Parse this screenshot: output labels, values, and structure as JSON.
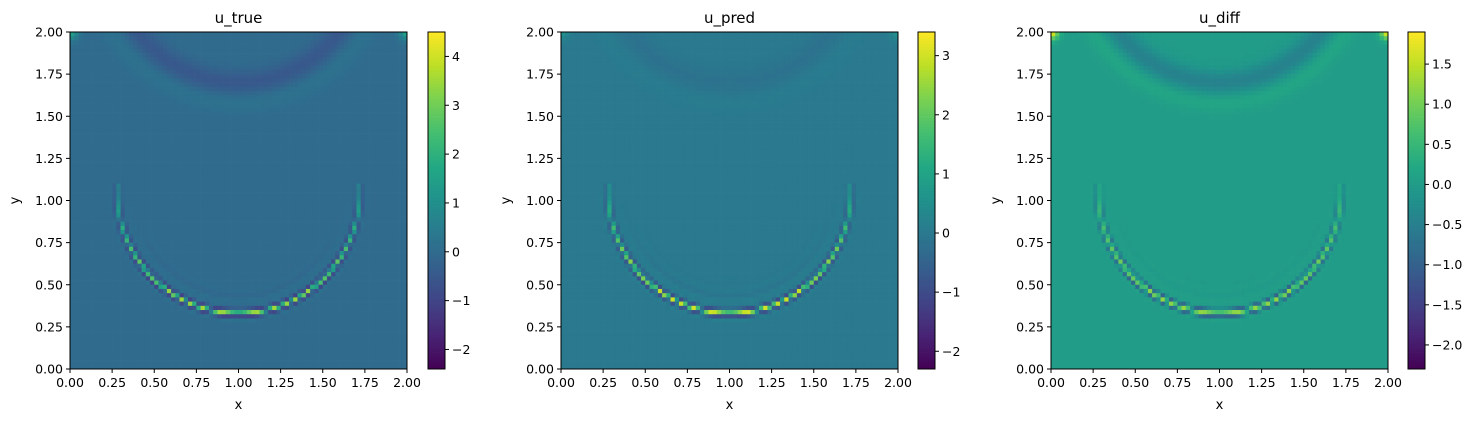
{
  "chart_data": [
    {
      "type": "heatmap",
      "title": "u_true",
      "xlabel": "x",
      "ylabel": "y",
      "xlim": [
        0,
        2
      ],
      "ylim": [
        0,
        2
      ],
      "xticks": [
        "0.00",
        "0.25",
        "0.50",
        "0.75",
        "1.00",
        "1.25",
        "1.50",
        "1.75",
        "2.00"
      ],
      "yticks": [
        "0.00",
        "0.25",
        "0.50",
        "0.75",
        "1.00",
        "1.25",
        "1.50",
        "1.75",
        "2.00"
      ],
      "colormap": "viridis",
      "colorbar": {
        "min": -2.4,
        "max": 4.5,
        "ticks": [
          -2,
          -1,
          0,
          1,
          2,
          3,
          4
        ],
        "labels": [
          "−2",
          "−1",
          "0",
          "1",
          "2",
          "3",
          "4"
        ]
      },
      "background_value": 0,
      "features": {
        "wavefront_arc": {
          "center": [
            1.0,
            1.05
          ],
          "radius": 0.72,
          "crest": 3.5,
          "trough": -2.1
        },
        "top_arc": {
          "center": [
            1.0,
            2.45
          ],
          "radius": 0.75,
          "amplitude": -0.5
        },
        "corner_value": 1.6
      }
    },
    {
      "type": "heatmap",
      "title": "u_pred",
      "xlabel": "x",
      "ylabel": "y",
      "xlim": [
        0,
        2
      ],
      "ylim": [
        0,
        2
      ],
      "xticks": [
        "0.00",
        "0.25",
        "0.50",
        "0.75",
        "1.00",
        "1.25",
        "1.50",
        "1.75",
        "2.00"
      ],
      "yticks": [
        "0.00",
        "0.25",
        "0.50",
        "0.75",
        "1.00",
        "1.25",
        "1.50",
        "1.75",
        "2.00"
      ],
      "colormap": "viridis",
      "colorbar": {
        "min": -2.3,
        "max": 3.4,
        "ticks": [
          -2,
          -1,
          0,
          1,
          2,
          3
        ],
        "labels": [
          "−2",
          "−1",
          "0",
          "1",
          "2",
          "3"
        ]
      },
      "background_value": 0,
      "features": {
        "wavefront_arc": {
          "center": [
            1.0,
            1.05
          ],
          "radius": 0.72,
          "crest": 3.0,
          "trough": -2.0
        },
        "top_arc": {
          "center": [
            1.0,
            2.45
          ],
          "radius": 0.75,
          "amplitude": -0.15
        },
        "corner_value": 0.6
      }
    },
    {
      "type": "heatmap",
      "title": "u_diff",
      "xlabel": "x",
      "ylabel": "y",
      "xlim": [
        0,
        2
      ],
      "ylim": [
        0,
        2
      ],
      "xticks": [
        "0.00",
        "0.25",
        "0.50",
        "0.75",
        "1.00",
        "1.25",
        "1.50",
        "1.75",
        "2.00"
      ],
      "yticks": [
        "0.00",
        "0.25",
        "0.50",
        "0.75",
        "1.00",
        "1.25",
        "1.50",
        "1.75",
        "2.00"
      ],
      "colormap": "viridis",
      "colorbar": {
        "min": -2.3,
        "max": 1.9,
        "ticks": [
          -2.0,
          -1.5,
          -1.0,
          -0.5,
          0.0,
          0.5,
          1.0,
          1.5
        ],
        "labels": [
          "−2.0",
          "−1.5",
          "−1.0",
          "−0.5",
          "0.0",
          "0.5",
          "1.0",
          "1.5"
        ]
      },
      "background_value": 0,
      "features": {
        "wavefront_arc": {
          "center": [
            1.0,
            1.05
          ],
          "radius": 0.72,
          "crest": 1.2,
          "trough": -2.0
        },
        "top_arc": {
          "center": [
            1.0,
            2.45
          ],
          "radius": 0.75,
          "amplitude": -0.45
        },
        "corner_value": 1.8
      }
    }
  ]
}
